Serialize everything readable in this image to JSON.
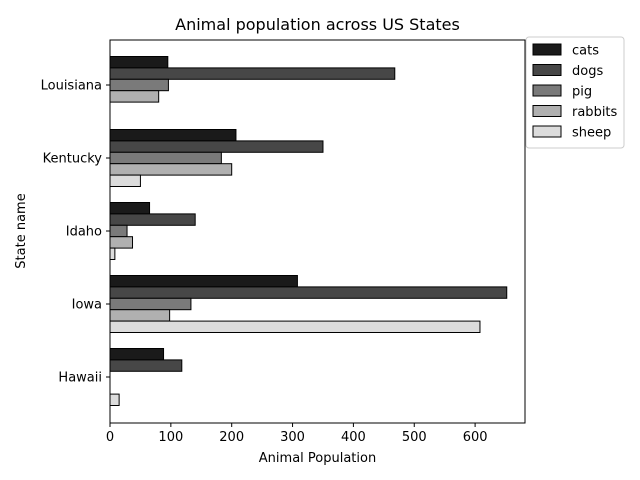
{
  "chart_data": {
    "type": "bar",
    "orientation": "horizontal",
    "title": "Animal population across US States",
    "xlabel": "Animal Population",
    "ylabel": "State name",
    "xlim": [
      0,
      682
    ],
    "xticks": [
      0,
      100,
      200,
      300,
      400,
      500,
      600
    ],
    "categories": [
      "Louisiana",
      "Kentucky",
      "Idaho",
      "Iowa",
      "Hawaii"
    ],
    "series": [
      {
        "name": "cats",
        "color": "#1a1a1a",
        "values": [
          95,
          207,
          65,
          308,
          88
        ]
      },
      {
        "name": "dogs",
        "color": "#474747",
        "values": [
          468,
          350,
          140,
          652,
          118
        ]
      },
      {
        "name": "pig",
        "color": "#7a7a7a",
        "values": [
          96,
          183,
          28,
          133,
          0
        ]
      },
      {
        "name": "rabbits",
        "color": "#b0b0b0",
        "values": [
          80,
          200,
          37,
          98,
          0
        ]
      },
      {
        "name": "sheep",
        "color": "#dcdcdc",
        "values": [
          0,
          50,
          8,
          608,
          15
        ]
      }
    ],
    "legend_position": "upper-right-outside",
    "grid": false
  }
}
